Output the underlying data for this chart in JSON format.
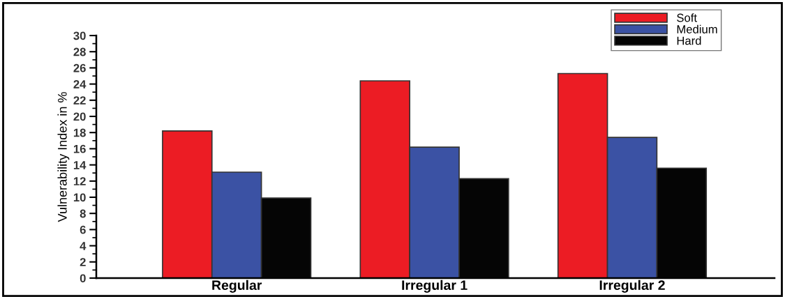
{
  "chart_data": {
    "type": "bar",
    "ylabel": "Vulnerability Index in %",
    "categories": [
      "Regular",
      "Irregular 1",
      "Irregular 2"
    ],
    "series": [
      {
        "name": "Soft",
        "color": "#ec1c24",
        "values": [
          18.2,
          24.4,
          25.3
        ]
      },
      {
        "name": "Medium",
        "color": "#3b52a4",
        "values": [
          13.1,
          16.2,
          17.4
        ]
      },
      {
        "name": "Hard",
        "color": "#050505",
        "values": [
          9.9,
          12.3,
          13.6
        ]
      }
    ],
    "ylim": [
      0,
      30
    ],
    "yticks": [
      0,
      2,
      4,
      6,
      8,
      10,
      12,
      14,
      16,
      18,
      20,
      22,
      24,
      26,
      28,
      30
    ],
    "grid": false,
    "legend": "top right"
  }
}
